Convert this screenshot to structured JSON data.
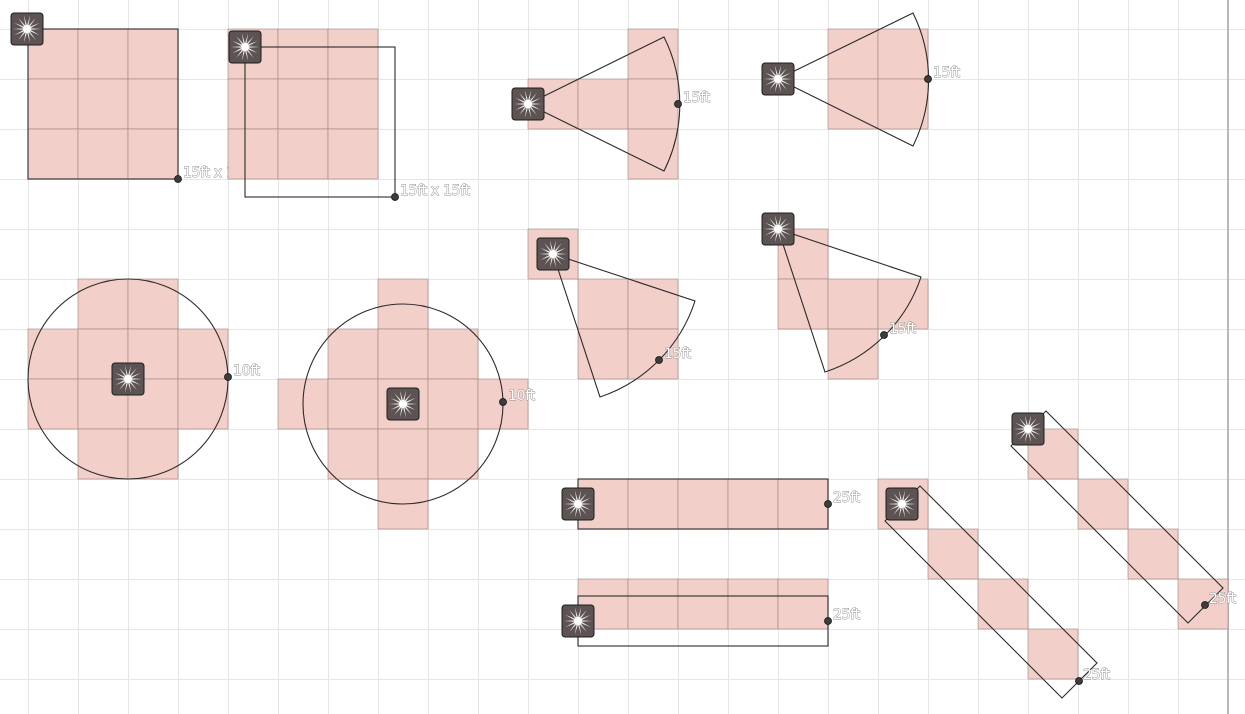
{
  "colors": {
    "background": "#ffffff",
    "grid_line": "#e6e6e6",
    "affected_tile": "#f2cfc9",
    "outline": "#2b2b2b",
    "token": "#5c5352",
    "label_fill": "#ffffff",
    "label_stroke": "#8e8e8e"
  },
  "token_icon": "spell-burst-icon",
  "templates": [
    {
      "id": "cube-corner",
      "shape": "square",
      "label": "15ft x 15ft"
    },
    {
      "id": "cube-offset",
      "shape": "square",
      "label": "15ft x 15ft"
    },
    {
      "id": "cone-horizontal-a",
      "shape": "cone",
      "label": "15ft"
    },
    {
      "id": "cone-horizontal-b",
      "shape": "cone",
      "label": "15ft"
    },
    {
      "id": "sphere-cell-center",
      "shape": "circle",
      "label": "10ft"
    },
    {
      "id": "sphere-grid-corner",
      "shape": "circle",
      "label": "10ft"
    },
    {
      "id": "cone-diagonal-a",
      "shape": "cone",
      "label": "15ft"
    },
    {
      "id": "cone-diagonal-b",
      "shape": "cone",
      "label": "15ft"
    },
    {
      "id": "line-horizontal-a",
      "shape": "line",
      "label": "25ft"
    },
    {
      "id": "line-horizontal-b",
      "shape": "line",
      "label": "25ft"
    },
    {
      "id": "line-diagonal-a",
      "shape": "line",
      "label": "25ft"
    },
    {
      "id": "line-diagonal-b",
      "shape": "line",
      "label": "25ft"
    }
  ]
}
